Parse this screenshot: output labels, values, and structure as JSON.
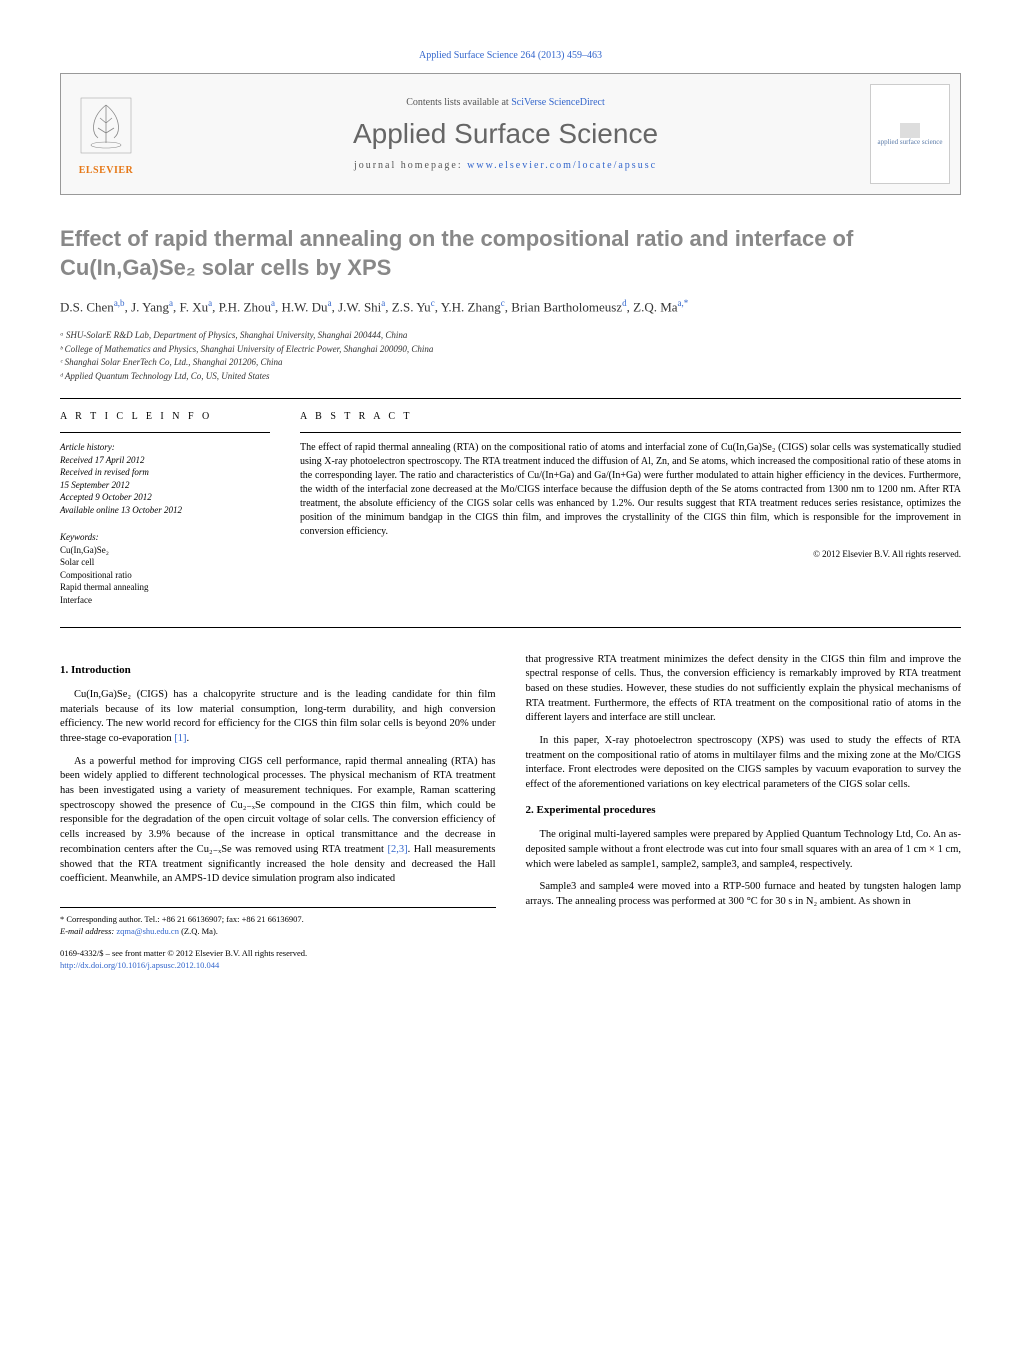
{
  "journal_ref": "Applied Surface Science 264 (2013) 459–463",
  "header": {
    "contents_prefix": "Contents lists available at ",
    "contents_link": "SciVerse ScienceDirect",
    "journal_name": "Applied Surface Science",
    "homepage_prefix": "journal homepage: ",
    "homepage_link": "www.elsevier.com/locate/apsusc",
    "elsevier_label": "ELSEVIER",
    "cover_label": "applied surface science"
  },
  "title": "Effect of rapid thermal annealing on the compositional ratio and interface of Cu(In,Ga)Se₂ solar cells by XPS",
  "authors_html": "D.S. Chen<sup>a,b</sup>, J. Yang<sup>a</sup>, F. Xu<sup>a</sup>, P.H. Zhou<sup>a</sup>, H.W. Du<sup>a</sup>, J.W. Shi<sup>a</sup>, Z.S. Yu<sup>c</sup>, Y.H. Zhang<sup>c</sup>, Brian Bartholomeusz<sup>d</sup>, Z.Q. Ma<sup>a,*</sup>",
  "affiliations": [
    "ᵃ SHU-SolarE R&D Lab, Department of Physics, Shanghai University, Shanghai 200444, China",
    "ᵇ College of Mathematics and Physics, Shanghai University of Electric Power, Shanghai 200090, China",
    "ᶜ Shanghai Solar EnerTech Co, Ltd., Shanghai 201206, China",
    "ᵈ Applied Quantum Technology Ltd, Co, US, United States"
  ],
  "article_info": {
    "heading": "A R T I C L E   I N F O",
    "history_label": "Article history:",
    "history": [
      "Received 17 April 2012",
      "Received in revised form",
      "15 September 2012",
      "Accepted 9 October 2012",
      "Available online 13 October 2012"
    ],
    "keywords_label": "Keywords:",
    "keywords": [
      "Cu(In,Ga)Se₂",
      "Solar cell",
      "Compositional ratio",
      "Rapid thermal annealing",
      "Interface"
    ]
  },
  "abstract": {
    "heading": "A B S T R A C T",
    "text": "The effect of rapid thermal annealing (RTA) on the compositional ratio of atoms and interfacial zone of Cu(In,Ga)Se₂ (CIGS) solar cells was systematically studied using X-ray photoelectron spectroscopy. The RTA treatment induced the diffusion of Al, Zn, and Se atoms, which increased the compositional ratio of these atoms in the corresponding layer. The ratio and characteristics of Cu/(In+Ga) and Ga/(In+Ga) were further modulated to attain higher efficiency in the devices. Furthermore, the width of the interfacial zone decreased at the Mo/CIGS interface because the diffusion depth of the Se atoms contracted from 1300 nm to 1200 nm. After RTA treatment, the absolute efficiency of the CIGS solar cells was enhanced by 1.2%. Our results suggest that RTA treatment reduces series resistance, optimizes the position of the minimum bandgap in the CIGS thin film, and improves the crystallinity of the CIGS thin film, which is responsible for the improvement in conversion efficiency.",
    "copyright": "© 2012 Elsevier B.V. All rights reserved."
  },
  "sections": {
    "intro_heading": "1. Introduction",
    "exp_heading": "2. Experimental procedures",
    "left_paras": [
      "Cu(In,Ga)Se₂ (CIGS) has a chalcopyrite structure and is the leading candidate for thin film materials because of its low material consumption, long-term durability, and high conversion efficiency. The new world record for efficiency for the CIGS thin film solar cells is beyond 20% under three-stage co-evaporation [1].",
      "As a powerful method for improving CIGS cell performance, rapid thermal annealing (RTA) has been widely applied to different technological processes. The physical mechanism of RTA treatment has been investigated using a variety of measurement techniques. For example, Raman scattering spectroscopy showed the presence of Cu₂₋ₓSe compound in the CIGS thin film, which could be responsible for the degradation of the open circuit voltage of solar cells. The conversion efficiency of cells increased by 3.9% because of the increase in optical transmittance and the decrease in recombination centers after the Cu₂₋ₓSe was removed using RTA treatment [2,3]. Hall measurements showed that the RTA treatment significantly increased the hole density and decreased the Hall coefficient. Meanwhile, an AMPS-1D device simulation program also indicated"
    ],
    "right_paras": [
      "that progressive RTA treatment minimizes the defect density in the CIGS thin film and improve the spectral response of cells. Thus, the conversion efficiency is remarkably improved by RTA treatment based on these studies. However, these studies do not sufficiently explain the physical mechanisms of RTA treatment. Furthermore, the effects of RTA treatment on the compositional ratio of atoms in the different layers and interface are still unclear.",
      "In this paper, X-ray photoelectron spectroscopy (XPS) was used to study the effects of RTA treatment on the compositional ratio of atoms in multilayer films and the mixing zone at the Mo/CIGS interface. Front electrodes were deposited on the CIGS samples by vacuum evaporation to survey the effect of the aforementioned variations on key electrical parameters of the CIGS solar cells."
    ],
    "exp_paras": [
      "The original multi-layered samples were prepared by Applied Quantum Technology Ltd, Co. An as-deposited sample without a front electrode was cut into four small squares with an area of 1 cm × 1 cm, which were labeled as sample1, sample2, sample3, and sample4, respectively.",
      "Sample3 and sample4 were moved into a RTP-500 furnace and heated by tungsten halogen lamp arrays. The annealing process was performed at 300 °C for 30 s in N₂ ambient. As shown in"
    ]
  },
  "footer": {
    "corr": "* Corresponding author. Tel.: +86 21 66136907; fax: +86 21 66136907.",
    "email_label": "E-mail address: ",
    "email": "zqma@shu.edu.cn",
    "email_suffix": " (Z.Q. Ma).",
    "issn_line": "0169-4332/$ – see front matter © 2012 Elsevier B.V. All rights reserved.",
    "doi": "http://dx.doi.org/10.1016/j.apsusc.2012.10.044"
  },
  "colors": {
    "link": "#3366cc",
    "title_gray": "#888888",
    "journal_gray": "#666666",
    "elsevier_orange": "#e67817"
  }
}
